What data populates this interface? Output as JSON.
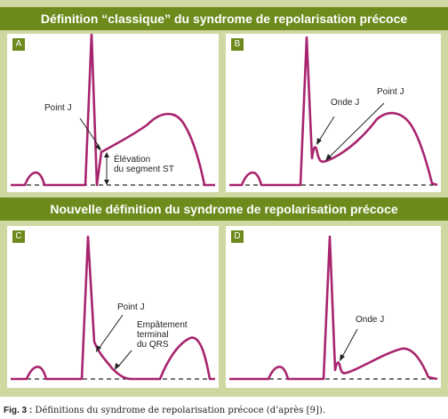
{
  "headers": {
    "classic": "Définition “classique” du syndrome de repolarisation précoce",
    "new": "Nouvelle définition du syndrome de repolarisation précoce"
  },
  "panels": {
    "A": {
      "letter": "A",
      "point_j": "Point J",
      "elevation_line1": "Élévation",
      "elevation_line2": "du segment ST"
    },
    "B": {
      "letter": "B",
      "onde_j": "Onde J",
      "point_j": "Point J"
    },
    "C": {
      "letter": "C",
      "point_j": "Point J",
      "emp_line1": "Empâtement",
      "emp_line2": "terminal",
      "emp_line3": "du QRS"
    },
    "D": {
      "letter": "D",
      "onde_j": "Onde J"
    }
  },
  "caption": {
    "prefix": "Fig. 3 :",
    "text": " Définitions du syndrome de repolarisation précoce (d’après [9])."
  },
  "colors": {
    "trace": "#a8246e",
    "header_bg": "#6d8a1c",
    "frame_bg": "#cfd8a0"
  }
}
